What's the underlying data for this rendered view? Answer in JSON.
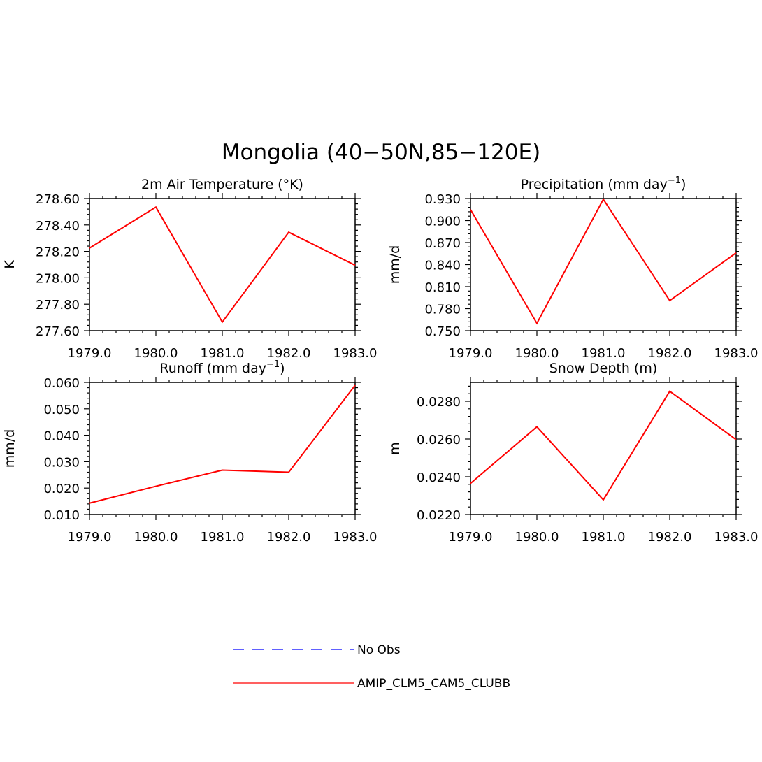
{
  "title": "Mongolia (40−50N,85−120E)",
  "chart_data": [
    {
      "type": "line",
      "title": "2m Air Temperature (°K)",
      "title_parts": {
        "main": "2m Air Temperature (°K)",
        "sup": "",
        "tail": ""
      },
      "ylabel": "K",
      "x": [
        1979,
        1980,
        1981,
        1982,
        1983
      ],
      "xlim": [
        1979,
        1983
      ],
      "xticks": [
        "1979.0",
        "1980.0",
        "1981.0",
        "1982.0",
        "1983.0"
      ],
      "ylim": [
        277.6,
        278.6
      ],
      "yticks": [
        277.6,
        277.8,
        278.0,
        278.2,
        278.4,
        278.6
      ],
      "ytick_labels": [
        "277.60",
        "277.80",
        "278.00",
        "278.20",
        "278.40",
        "278.60"
      ],
      "series": [
        {
          "name": "AMIP_CLM5_CAM5_CLUBB",
          "color": "#ff0000",
          "values": [
            278.225,
            278.535,
            277.665,
            278.345,
            278.095
          ]
        }
      ]
    },
    {
      "type": "line",
      "title": "Precipitation (mm day⁻¹)",
      "title_parts": {
        "main": "Precipitation (mm day",
        "sup": "−1",
        "tail": ")"
      },
      "ylabel": "mm/d",
      "x": [
        1979,
        1980,
        1981,
        1982,
        1983
      ],
      "xlim": [
        1979,
        1983
      ],
      "xticks": [
        "1979.0",
        "1980.0",
        "1981.0",
        "1982.0",
        "1983.0"
      ],
      "ylim": [
        0.75,
        0.93
      ],
      "yticks": [
        0.75,
        0.78,
        0.81,
        0.84,
        0.87,
        0.9,
        0.93
      ],
      "ytick_labels": [
        "0.750",
        "0.780",
        "0.810",
        "0.840",
        "0.870",
        "0.900",
        "0.930"
      ],
      "series": [
        {
          "name": "AMIP_CLM5_CAM5_CLUBB",
          "color": "#ff0000",
          "values": [
            0.915,
            0.76,
            0.929,
            0.791,
            0.856
          ]
        }
      ]
    },
    {
      "type": "line",
      "title": "Runoff (mm day⁻¹)",
      "title_parts": {
        "main": "Runoff (mm day",
        "sup": "−1",
        "tail": ")"
      },
      "ylabel": "mm/d",
      "x": [
        1979,
        1980,
        1981,
        1982,
        1983
      ],
      "xlim": [
        1979,
        1983
      ],
      "xticks": [
        "1979.0",
        "1980.0",
        "1981.0",
        "1982.0",
        "1983.0"
      ],
      "ylim": [
        0.01,
        0.06
      ],
      "yticks": [
        0.01,
        0.02,
        0.03,
        0.04,
        0.05,
        0.06
      ],
      "ytick_labels": [
        "0.010",
        "0.020",
        "0.030",
        "0.040",
        "0.050",
        "0.060"
      ],
      "series": [
        {
          "name": "AMIP_CLM5_CAM5_CLUBB",
          "color": "#ff0000",
          "values": [
            0.0143,
            0.0207,
            0.0268,
            0.026,
            0.0589
          ]
        }
      ]
    },
    {
      "type": "line",
      "title": "Snow Depth (m)",
      "title_parts": {
        "main": "Snow Depth (m)",
        "sup": "",
        "tail": ""
      },
      "ylabel": "m",
      "x": [
        1979,
        1980,
        1981,
        1982,
        1983
      ],
      "xlim": [
        1979,
        1983
      ],
      "xticks": [
        "1979.0",
        "1980.0",
        "1981.0",
        "1982.0",
        "1983.0"
      ],
      "ylim": [
        0.022,
        0.029
      ],
      "yticks": [
        0.022,
        0.024,
        0.026,
        0.028
      ],
      "ytick_labels": [
        "0.0220",
        "0.0240",
        "0.0260",
        "0.0280"
      ],
      "series": [
        {
          "name": "AMIP_CLM5_CAM5_CLUBB",
          "color": "#ff0000",
          "values": [
            0.02365,
            0.02665,
            0.02278,
            0.02853,
            0.02597
          ]
        }
      ]
    }
  ],
  "legend": [
    {
      "label": "No Obs",
      "color": "#0000ff",
      "style": "dashed"
    },
    {
      "label": "AMIP_CLM5_CAM5_CLUBB",
      "color": "#ff0000",
      "style": "solid"
    }
  ]
}
